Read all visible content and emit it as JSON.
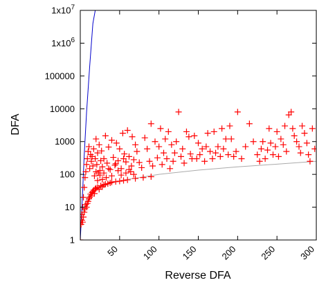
{
  "chart_data": {
    "type": "scatter",
    "xlabel": "Reverse DFA",
    "ylabel": "DFA",
    "x_scale": "linear",
    "y_scale": "log",
    "xlim": [
      0,
      300
    ],
    "ylim": [
      1,
      10000000
    ],
    "x_ticks": [
      50,
      100,
      150,
      200,
      250,
      300
    ],
    "x_tick_labels": [
      "50",
      "100",
      "150",
      "200",
      "250",
      "300"
    ],
    "y_ticks": [
      1,
      10,
      100,
      1000,
      10000,
      100000,
      1000000,
      10000000
    ],
    "y_tick_labels": [
      "1",
      "10",
      "100",
      "1000",
      "10000",
      "100000",
      "1x10",
      "1x10"
    ],
    "y_tick_superscripts": [
      "",
      "",
      "",
      "",
      "",
      "",
      "6",
      "7"
    ],
    "grid": false,
    "colors": {
      "points": "#ff0000",
      "diagonal": "#0000cc",
      "fit": "#aaaaaa"
    },
    "reference_lines": [
      {
        "kind": "steep-line",
        "color": "#0000cc",
        "points": [
          [
            0,
            1
          ],
          [
            1,
            3
          ],
          [
            3,
            30
          ],
          [
            5,
            400
          ],
          [
            8,
            8000
          ],
          [
            12,
            200000
          ],
          [
            16,
            4000000
          ],
          [
            19,
            10000000
          ]
        ]
      },
      {
        "kind": "fit-curve",
        "color": "#aaaaaa",
        "points": [
          [
            1,
            3
          ],
          [
            2,
            5
          ],
          [
            5,
            11
          ],
          [
            10,
            22
          ],
          [
            20,
            35
          ],
          [
            40,
            55
          ],
          [
            60,
            70
          ],
          [
            100,
            100
          ],
          [
            150,
            135
          ],
          [
            200,
            170
          ],
          [
            250,
            205
          ],
          [
            300,
            250
          ]
        ]
      }
    ],
    "series": [
      {
        "marker": "+",
        "points": [
          [
            0,
            1
          ],
          [
            1,
            3
          ],
          [
            2,
            4
          ],
          [
            3,
            3.5
          ],
          [
            2,
            6
          ],
          [
            4,
            5
          ],
          [
            5,
            7
          ],
          [
            6,
            9
          ],
          [
            7,
            12
          ],
          [
            8,
            10
          ],
          [
            9,
            13
          ],
          [
            10,
            15
          ],
          [
            11,
            18
          ],
          [
            12,
            20
          ],
          [
            13,
            25
          ],
          [
            14,
            22
          ],
          [
            15,
            28
          ],
          [
            16,
            30
          ],
          [
            17,
            33
          ],
          [
            18,
            26
          ],
          [
            19,
            36
          ],
          [
            20,
            38
          ],
          [
            22,
            40
          ],
          [
            24,
            35
          ],
          [
            26,
            45
          ],
          [
            28,
            42
          ],
          [
            30,
            48
          ],
          [
            32,
            50
          ],
          [
            35,
            52
          ],
          [
            38,
            55
          ],
          [
            40,
            58
          ],
          [
            45,
            60
          ],
          [
            50,
            62
          ],
          [
            55,
            65
          ],
          [
            60,
            68
          ],
          [
            70,
            75
          ],
          [
            80,
            80
          ],
          [
            90,
            85
          ],
          [
            3,
            10
          ],
          [
            4,
            20
          ],
          [
            5,
            40
          ],
          [
            6,
            80
          ],
          [
            7,
            120
          ],
          [
            8,
            200
          ],
          [
            9,
            300
          ],
          [
            10,
            500
          ],
          [
            11,
            700
          ],
          [
            12,
            150
          ],
          [
            13,
            400
          ],
          [
            14,
            250
          ],
          [
            15,
            350
          ],
          [
            16,
            180
          ],
          [
            17,
            600
          ],
          [
            18,
            90
          ],
          [
            19,
            300
          ],
          [
            20,
            1200
          ],
          [
            21,
            200
          ],
          [
            22,
            450
          ],
          [
            23,
            110
          ],
          [
            24,
            800
          ],
          [
            25,
            130
          ],
          [
            26,
            260
          ],
          [
            27,
            520
          ],
          [
            28,
            170
          ],
          [
            30,
            300
          ],
          [
            32,
            1500
          ],
          [
            34,
            220
          ],
          [
            36,
            680
          ],
          [
            38,
            140
          ],
          [
            40,
            1100
          ],
          [
            42,
            330
          ],
          [
            44,
            190
          ],
          [
            46,
            900
          ],
          [
            48,
            260
          ],
          [
            50,
            600
          ],
          [
            52,
            150
          ],
          [
            54,
            1800
          ],
          [
            56,
            420
          ],
          [
            58,
            240
          ],
          [
            60,
            2200
          ],
          [
            62,
            350
          ],
          [
            64,
            120
          ],
          [
            66,
            1400
          ],
          [
            68,
            280
          ],
          [
            70,
            800
          ],
          [
            20,
            120
          ],
          [
            22,
            65
          ],
          [
            25,
            95
          ],
          [
            28,
            70
          ],
          [
            30,
            110
          ],
          [
            33,
            80
          ],
          [
            36,
            150
          ],
          [
            40,
            90
          ],
          [
            45,
            210
          ],
          [
            48,
            130
          ],
          [
            52,
            95
          ],
          [
            55,
            300
          ],
          [
            58,
            110
          ],
          [
            62,
            140
          ],
          [
            65,
            180
          ],
          [
            68,
            100
          ],
          [
            72,
            500
          ],
          [
            75,
            230
          ],
          [
            78,
            160
          ],
          [
            82,
            1300
          ],
          [
            85,
            600
          ],
          [
            88,
            250
          ],
          [
            90,
            3500
          ],
          [
            92,
            180
          ],
          [
            95,
            1000
          ],
          [
            98,
            320
          ],
          [
            100,
            700
          ],
          [
            102,
            2500
          ],
          [
            104,
            200
          ],
          [
            106,
            450
          ],
          [
            108,
            1200
          ],
          [
            110,
            300
          ],
          [
            112,
            2000
          ],
          [
            114,
            150
          ],
          [
            116,
            800
          ],
          [
            118,
            250
          ],
          [
            120,
            450
          ],
          [
            122,
            1000
          ],
          [
            125,
            8000
          ],
          [
            128,
            350
          ],
          [
            130,
            600
          ],
          [
            132,
            220
          ],
          [
            135,
            2000
          ],
          [
            138,
            1400
          ],
          [
            140,
            420
          ],
          [
            142,
            300
          ],
          [
            145,
            1500
          ],
          [
            148,
            300
          ],
          [
            150,
            900
          ],
          [
            152,
            400
          ],
          [
            155,
            600
          ],
          [
            158,
            250
          ],
          [
            160,
            700
          ],
          [
            162,
            1800
          ],
          [
            165,
            500
          ],
          [
            168,
            300
          ],
          [
            170,
            2000
          ],
          [
            172,
            450
          ],
          [
            175,
            700
          ],
          [
            178,
            350
          ],
          [
            180,
            2500
          ],
          [
            182,
            600
          ],
          [
            185,
            1200
          ],
          [
            188,
            400
          ],
          [
            190,
            3000
          ],
          [
            192,
            1200
          ],
          [
            195,
            350
          ],
          [
            198,
            500
          ],
          [
            200,
            8000
          ],
          [
            205,
            300
          ],
          [
            210,
            700
          ],
          [
            215,
            3500
          ],
          [
            220,
            1000
          ],
          [
            225,
            400
          ],
          [
            228,
            250
          ],
          [
            230,
            600
          ],
          [
            232,
            1000
          ],
          [
            235,
            300
          ],
          [
            238,
            550
          ],
          [
            240,
            2500
          ],
          [
            242,
            900
          ],
          [
            245,
            400
          ],
          [
            248,
            700
          ],
          [
            250,
            2000
          ],
          [
            252,
            350
          ],
          [
            255,
            1200
          ],
          [
            258,
            800
          ],
          [
            260,
            3000
          ],
          [
            262,
            500
          ],
          [
            265,
            6500
          ],
          [
            268,
            8000
          ],
          [
            270,
            2500
          ],
          [
            272,
            1500
          ],
          [
            275,
            1000
          ],
          [
            278,
            700
          ],
          [
            280,
            450
          ],
          [
            282,
            3000
          ],
          [
            285,
            1800
          ],
          [
            288,
            900
          ],
          [
            290,
            400
          ],
          [
            292,
            250
          ],
          [
            295,
            2500
          ],
          [
            298,
            600
          ]
        ]
      }
    ]
  }
}
